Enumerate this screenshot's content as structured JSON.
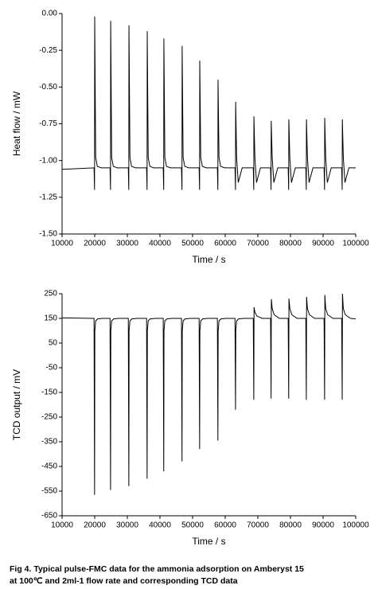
{
  "chart_data": [
    {
      "type": "line",
      "x_label": "Time / s",
      "y_label": "Heat flow / mW",
      "color": "#000000",
      "xlim": [
        10000,
        100000
      ],
      "xticks": [
        10000,
        20000,
        30000,
        40000,
        50000,
        60000,
        70000,
        80000,
        90000,
        100000
      ],
      "ylim": [
        -1.5,
        0
      ],
      "yticks": [
        {
          "value": 0,
          "label": "0.00"
        },
        -0.25,
        {
          "value": -0.5,
          "label": "-0.50"
        },
        -0.75,
        {
          "value": -1,
          "label": "-1.00"
        },
        -1.25,
        {
          "value": -1.5,
          "label": "-1.50"
        }
      ],
      "x": [
        10000,
        19800,
        19950,
        20000,
        20300,
        20800,
        22000,
        24700,
        24850,
        24900,
        25200,
        25700,
        26900,
        30300,
        30450,
        30500,
        30800,
        31300,
        32500,
        35900,
        36050,
        36100,
        36400,
        36900,
        38100,
        41000,
        41150,
        41200,
        41500,
        42000,
        43200,
        46600,
        46750,
        46800,
        47100,
        47600,
        48800,
        52000,
        52150,
        52200,
        52500,
        53000,
        54200,
        57600,
        57750,
        57800,
        58100,
        58600,
        59800,
        63000,
        63150,
        63200,
        63500,
        64000,
        65200,
        68600,
        68750,
        68800,
        69100,
        69600,
        70800,
        73900,
        74050,
        74100,
        74400,
        74900,
        76100,
        79300,
        79450,
        79500,
        79800,
        80300,
        81500,
        84700,
        84850,
        84900,
        85200,
        85700,
        86900,
        90300,
        90450,
        90500,
        90800,
        91300,
        92500,
        95700,
        95850,
        95900,
        96200,
        96700,
        97900,
        100000
      ],
      "values": [
        -1.06,
        -1.05,
        -1.2,
        -0.02,
        -0.98,
        -1.04,
        -1.05,
        -1.05,
        -1.2,
        -0.05,
        -0.98,
        -1.04,
        -1.05,
        -1.05,
        -1.2,
        -0.08,
        -0.98,
        -1.04,
        -1.05,
        -1.05,
        -1.2,
        -0.12,
        -0.98,
        -1.04,
        -1.05,
        -1.05,
        -1.2,
        -0.17,
        -0.98,
        -1.04,
        -1.05,
        -1.05,
        -1.2,
        -0.22,
        -0.98,
        -1.04,
        -1.05,
        -1.05,
        -1.2,
        -0.32,
        -0.98,
        -1.04,
        -1.05,
        -1.05,
        -1.2,
        -0.45,
        -0.98,
        -1.04,
        -1.05,
        -1.05,
        -1.2,
        -0.6,
        -0.98,
        -1.15,
        -1.05,
        -1.05,
        -1.2,
        -0.7,
        -0.98,
        -1.15,
        -1.05,
        -1.05,
        -1.2,
        -0.73,
        -0.98,
        -1.15,
        -1.05,
        -1.05,
        -1.2,
        -0.72,
        -0.98,
        -1.15,
        -1.05,
        -1.05,
        -1.2,
        -0.72,
        -0.98,
        -1.15,
        -1.05,
        -1.05,
        -1.2,
        -0.71,
        -0.98,
        -1.15,
        -1.05,
        -1.05,
        -1.2,
        -0.72,
        -0.98,
        -1.15,
        -1.05,
        -1.05
      ]
    },
    {
      "type": "line",
      "x_label": "Time / s",
      "y_label": "TCD output / mV",
      "color": "#000000",
      "xlim": [
        10000,
        100000
      ],
      "xticks": [
        10000,
        20000,
        30000,
        40000,
        50000,
        60000,
        70000,
        80000,
        90000,
        100000
      ],
      "ylim": [
        -650,
        250
      ],
      "yticks": [
        250,
        150,
        50,
        -50,
        -150,
        -250,
        -350,
        -450,
        -550,
        -650
      ],
      "x": [
        10000,
        19800,
        19960,
        20040,
        20300,
        20900,
        22500,
        24700,
        24860,
        24940,
        25200,
        25800,
        27400,
        30300,
        30460,
        30540,
        30800,
        31400,
        33000,
        35900,
        36060,
        36140,
        36400,
        37000,
        38600,
        41000,
        41160,
        41240,
        41500,
        42100,
        43700,
        46600,
        46760,
        46840,
        47100,
        47700,
        49300,
        52000,
        52160,
        52240,
        52500,
        53100,
        54700,
        57600,
        57760,
        57840,
        58100,
        58700,
        60300,
        63000,
        63160,
        63240,
        63500,
        64100,
        65700,
        68600,
        68760,
        68840,
        69100,
        69700,
        71300,
        73900,
        74060,
        74140,
        74400,
        75000,
        76600,
        79300,
        79460,
        79540,
        79800,
        80400,
        82000,
        84700,
        84860,
        84940,
        85200,
        85800,
        87400,
        90300,
        90460,
        90540,
        90800,
        91400,
        93000,
        95700,
        95860,
        95940,
        96200,
        96800,
        98400,
        100000
      ],
      "values": [
        152,
        150,
        -565,
        100,
        140,
        148,
        150,
        150,
        -545,
        100,
        140,
        148,
        150,
        150,
        -530,
        100,
        140,
        148,
        150,
        150,
        -500,
        100,
        140,
        148,
        150,
        150,
        -470,
        100,
        140,
        148,
        150,
        150,
        -430,
        100,
        140,
        148,
        150,
        150,
        -380,
        100,
        140,
        148,
        150,
        150,
        -345,
        100,
        140,
        148,
        150,
        150,
        -220,
        100,
        140,
        148,
        150,
        150,
        -180,
        195,
        175,
        160,
        150,
        150,
        -175,
        228,
        190,
        165,
        150,
        150,
        -175,
        230,
        190,
        165,
        150,
        150,
        -180,
        237,
        190,
        165,
        150,
        150,
        -180,
        245,
        190,
        165,
        150,
        150,
        -180,
        250,
        190,
        165,
        150,
        148
      ]
    }
  ],
  "caption": [
    "Fig 4. Typical pulse-FMC data for the ammonia adsorption on Amberyst 15",
    "at 100℃ and 2ml-1 flow rate and corresponding TCD data"
  ]
}
